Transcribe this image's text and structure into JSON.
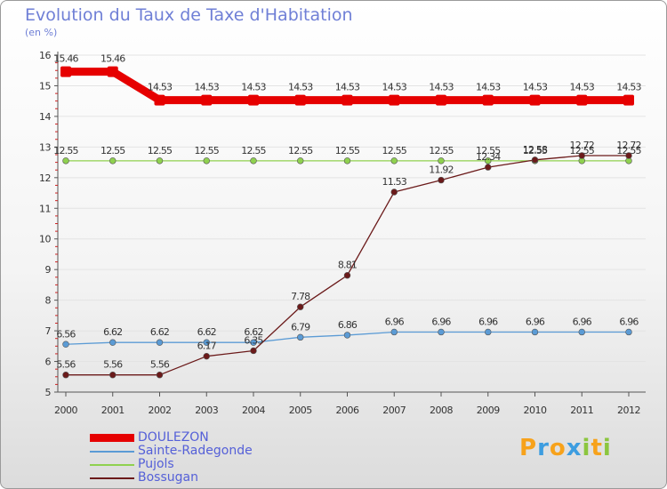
{
  "chart_data": {
    "type": "line",
    "title": "Evolution du Taux de Taxe d'Habitation",
    "ylabel": "(en %)",
    "xlabel": "",
    "ylim": [
      5,
      16
    ],
    "yticks": [
      "5",
      "6",
      "7",
      "8",
      "9",
      "10",
      "11",
      "12",
      "13",
      "14",
      "15",
      "16"
    ],
    "categories": [
      "2000",
      "2001",
      "2002",
      "2003",
      "2004",
      "2005",
      "2006",
      "2007",
      "2008",
      "2009",
      "2010",
      "2011",
      "2012"
    ],
    "series": [
      {
        "name": "DOULEZON",
        "color": "#e60000",
        "values": [
          15.46,
          15.46,
          14.53,
          14.53,
          14.53,
          14.53,
          14.53,
          14.53,
          14.53,
          14.53,
          14.53,
          14.53,
          14.53
        ],
        "labels": [
          "15.46",
          "15.46",
          "14.53",
          "14.53",
          "14.53",
          "14.53",
          "14.53",
          "14.53",
          "14.53",
          "14.53",
          "14.53",
          "14.53",
          "14.53"
        ]
      },
      {
        "name": "Sainte-Radegonde",
        "color": "#5b9bd5",
        "values": [
          6.56,
          6.62,
          6.62,
          6.62,
          6.62,
          6.79,
          6.86,
          6.96,
          6.96,
          6.96,
          6.96,
          6.96,
          6.96
        ],
        "labels": [
          "6.56",
          "6.62",
          "6.62",
          "6.62",
          "6.62",
          "6.79",
          "6.86",
          "6.96",
          "6.96",
          "6.96",
          "6.96",
          "6.96",
          "6.96"
        ]
      },
      {
        "name": "Pujols",
        "color": "#8fd14f",
        "values": [
          12.55,
          12.55,
          12.55,
          12.55,
          12.55,
          12.55,
          12.55,
          12.55,
          12.55,
          12.55,
          12.55,
          12.55,
          12.55
        ],
        "labels": [
          "12.55",
          "12.55",
          "12.55",
          "12.55",
          "12.55",
          "12.55",
          "12.55",
          "12.55",
          "12.55",
          "12.55",
          "12.55",
          "12.55",
          "12.55"
        ]
      },
      {
        "name": "Bossugan",
        "color": "#6b1a1a",
        "values": [
          5.56,
          5.56,
          5.56,
          6.17,
          6.35,
          7.78,
          8.81,
          11.53,
          11.92,
          12.34,
          12.58,
          12.72,
          12.72
        ],
        "labels": [
          "5.56",
          "5.56",
          "5.56",
          "6.17",
          "6.35",
          "7.78",
          "8.81",
          "11.53",
          "11.92",
          "12.34",
          "12.58",
          "12.72",
          "12.72"
        ]
      }
    ],
    "legend_position": "bottom-left"
  },
  "logo": {
    "letters": [
      "P",
      "r",
      "o",
      "x",
      "i",
      "t",
      "i"
    ],
    "colors": [
      "#f7a21b",
      "#3d9de0",
      "#f7a21b",
      "#3d9de0",
      "#8cc63f",
      "#f7a21b",
      "#8cc63f"
    ]
  }
}
